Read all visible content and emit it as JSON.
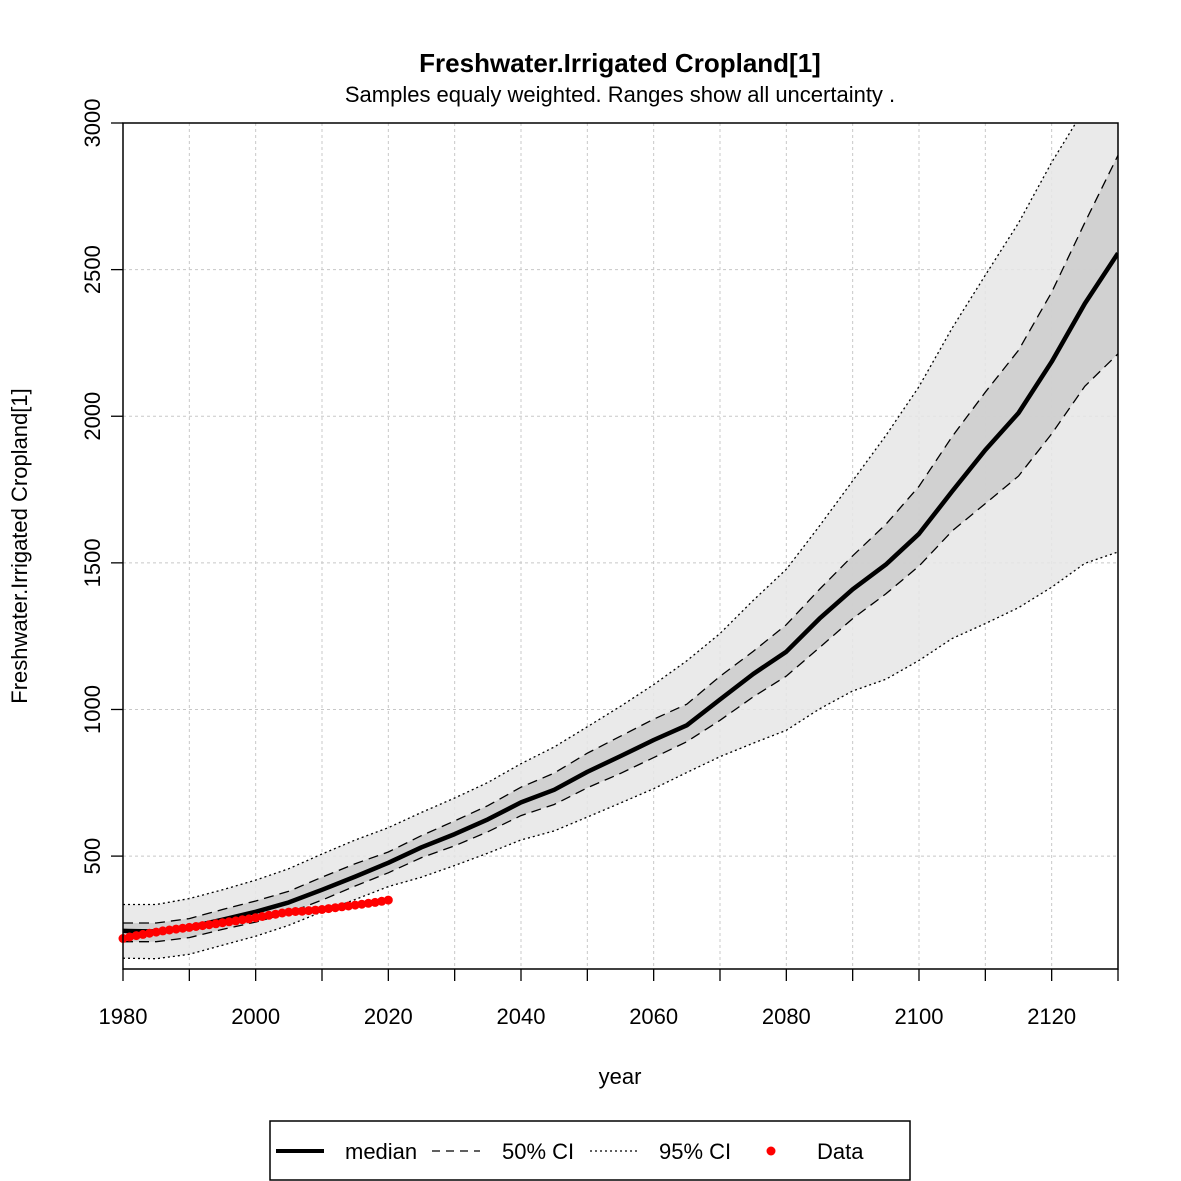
{
  "chart_data": {
    "type": "line",
    "title": "Freshwater.Irrigated Cropland[1]",
    "subtitle": "Samples equaly weighted. Ranges show  all uncertainty .",
    "xlabel": "year",
    "ylabel": "Freshwater.Irrigated Cropland[1]",
    "xlim": [
      1980,
      2130
    ],
    "ylim": [
      115,
      3000
    ],
    "x_ticks": [
      1980,
      2000,
      2020,
      2040,
      2060,
      2080,
      2100,
      2120
    ],
    "x_minor_ticks": [
      1990,
      2010,
      2030,
      2050,
      2070,
      2090,
      2110,
      2130
    ],
    "y_ticks": [
      500,
      1000,
      1500,
      2000,
      2500,
      3000
    ],
    "grid": true,
    "legend_position": "bottom",
    "legend": [
      {
        "label": "median",
        "style": "solid-thick"
      },
      {
        "label": "50% CI",
        "style": "dashed"
      },
      {
        "label": "95% CI",
        "style": "dotted"
      },
      {
        "label": "Data",
        "style": "point"
      }
    ],
    "colors": {
      "median": "#000000",
      "band95": "#e6e6e6",
      "band50": "#cccccc",
      "data": "#ff0000",
      "grid": "#c8c8c8"
    },
    "series": [
      {
        "name": "median",
        "x": [
          1980,
          1985,
          1990,
          1995,
          2000,
          2005,
          2010,
          2015,
          2020,
          2025,
          2030,
          2035,
          2040,
          2045,
          2050,
          2055,
          2060,
          2065,
          2070,
          2075,
          2080,
          2085,
          2090,
          2095,
          2100,
          2105,
          2110,
          2115,
          2120,
          2125,
          2130
        ],
        "values": [
          245,
          243,
          258,
          283,
          310,
          342,
          385,
          430,
          477,
          530,
          575,
          625,
          683,
          726,
          787,
          841,
          896,
          946,
          1034,
          1121,
          1197,
          1310,
          1410,
          1494,
          1599,
          1744,
          1885,
          2011,
          2186,
          2384,
          2556
        ]
      },
      {
        "name": "50% CI lower",
        "x": [
          1980,
          1985,
          1990,
          1995,
          2000,
          2005,
          2010,
          2015,
          2020,
          2025,
          2030,
          2035,
          2040,
          2045,
          2050,
          2055,
          2060,
          2065,
          2070,
          2075,
          2080,
          2085,
          2090,
          2095,
          2100,
          2105,
          2110,
          2115,
          2120,
          2125,
          2130
        ],
        "values": [
          208,
          208,
          222,
          250,
          275,
          307,
          350,
          398,
          443,
          495,
          535,
          583,
          638,
          676,
          733,
          782,
          836,
          890,
          963,
          1043,
          1114,
          1211,
          1310,
          1394,
          1489,
          1609,
          1702,
          1796,
          1940,
          2102,
          2213
        ]
      },
      {
        "name": "50% CI upper",
        "x": [
          1980,
          1985,
          1990,
          1995,
          2000,
          2005,
          2010,
          2015,
          2020,
          2025,
          2030,
          2035,
          2040,
          2045,
          2050,
          2055,
          2060,
          2065,
          2070,
          2075,
          2080,
          2085,
          2090,
          2095,
          2100,
          2105,
          2110,
          2115,
          2120,
          2125,
          2130
        ],
        "values": [
          272,
          272,
          287,
          318,
          347,
          380,
          428,
          474,
          514,
          570,
          620,
          672,
          735,
          783,
          851,
          909,
          967,
          1018,
          1113,
          1198,
          1289,
          1410,
          1524,
          1631,
          1761,
          1931,
          2082,
          2225,
          2423,
          2660,
          2890
        ]
      },
      {
        "name": "95% CI lower",
        "x": [
          1980,
          1985,
          1990,
          1995,
          2000,
          2005,
          2010,
          2015,
          2020,
          2025,
          2030,
          2035,
          2040,
          2045,
          2050,
          2055,
          2060,
          2065,
          2070,
          2075,
          2080,
          2085,
          2090,
          2095,
          2100,
          2105,
          2110,
          2115,
          2120,
          2125,
          2130
        ],
        "values": [
          152,
          150,
          165,
          196,
          227,
          264,
          310,
          352,
          396,
          428,
          468,
          510,
          555,
          586,
          633,
          681,
          730,
          785,
          839,
          885,
          929,
          1002,
          1063,
          1103,
          1167,
          1242,
          1293,
          1347,
          1417,
          1498,
          1537
        ]
      },
      {
        "name": "95% CI upper",
        "x": [
          1980,
          1985,
          1990,
          1995,
          2000,
          2005,
          2010,
          2015,
          2020,
          2025,
          2030,
          2035,
          2040,
          2045,
          2050,
          2055,
          2060,
          2065,
          2070,
          2075,
          2080,
          2085,
          2090,
          2095,
          2100,
          2105,
          2110,
          2115,
          2120,
          2125,
          2130
        ],
        "values": [
          335,
          335,
          355,
          385,
          418,
          457,
          507,
          555,
          597,
          649,
          698,
          751,
          815,
          872,
          941,
          1011,
          1085,
          1166,
          1259,
          1372,
          1478,
          1626,
          1780,
          1934,
          2101,
          2301,
          2481,
          2659,
          2866,
          3050,
          3250
        ]
      },
      {
        "name": "Data",
        "x": [
          1980,
          1981,
          1982,
          1983,
          1984,
          1985,
          1986,
          1987,
          1988,
          1989,
          1990,
          1991,
          1992,
          1993,
          1994,
          1995,
          1996,
          1997,
          1998,
          1999,
          2000,
          2001,
          2002,
          2003,
          2004,
          2005,
          2006,
          2007,
          2008,
          2009,
          2010,
          2011,
          2012,
          2013,
          2014,
          2015,
          2016,
          2017,
          2018,
          2019,
          2020
        ],
        "values": [
          219,
          224,
          229,
          233,
          237,
          241,
          245,
          248,
          251,
          254,
          257,
          260,
          263,
          266,
          269,
          273,
          276,
          279,
          283,
          286,
          290,
          294,
          298,
          302,
          306,
          309,
          311,
          312,
          314,
          316,
          318,
          321,
          324,
          327,
          330,
          333,
          336,
          339,
          342,
          346,
          350
        ]
      }
    ]
  }
}
